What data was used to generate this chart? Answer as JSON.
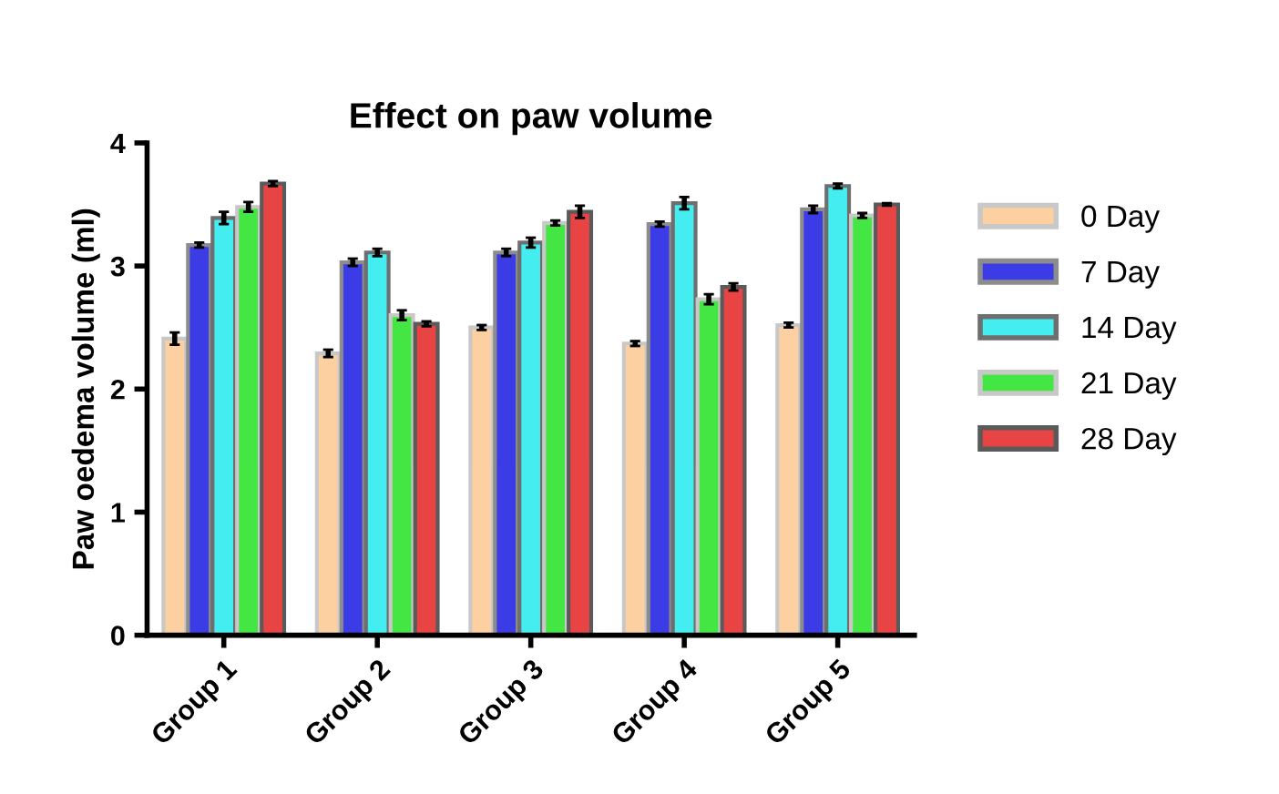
{
  "chart_data": {
    "type": "bar",
    "title": "Effect on paw volume",
    "ylabel": "Paw oedema volume (ml)",
    "categories": [
      "Group 1",
      "Group 2",
      "Group 3",
      "Group 4",
      "Group 5"
    ],
    "series": [
      {
        "name": "0 Day",
        "color": "#fcd0a0",
        "values": [
          2.41,
          2.29,
          2.5,
          2.37,
          2.52
        ],
        "errors": [
          0.05,
          0.03,
          0.02,
          0.02,
          0.02
        ]
      },
      {
        "name": "7 Day",
        "color": "#3c3ce6",
        "values": [
          3.17,
          3.03,
          3.11,
          3.34,
          3.46
        ],
        "errors": [
          0.02,
          0.03,
          0.03,
          0.02,
          0.03
        ]
      },
      {
        "name": "14 Day",
        "color": "#44eef0",
        "values": [
          3.39,
          3.11,
          3.19,
          3.51,
          3.65
        ],
        "errors": [
          0.05,
          0.03,
          0.04,
          0.05,
          0.02
        ]
      },
      {
        "name": "21 Day",
        "color": "#44e644",
        "values": [
          3.48,
          2.6,
          3.35,
          2.73,
          3.41
        ],
        "errors": [
          0.04,
          0.04,
          0.02,
          0.04,
          0.02
        ]
      },
      {
        "name": "28 Day",
        "color": "#e84444",
        "values": [
          3.67,
          2.53,
          3.44,
          2.83,
          3.5
        ],
        "errors": [
          0.02,
          0.02,
          0.05,
          0.03,
          0.01
        ]
      }
    ],
    "ylim": [
      0,
      4
    ],
    "yticks": [
      0,
      1,
      2,
      3,
      4
    ],
    "grid": false,
    "legend": "right"
  }
}
